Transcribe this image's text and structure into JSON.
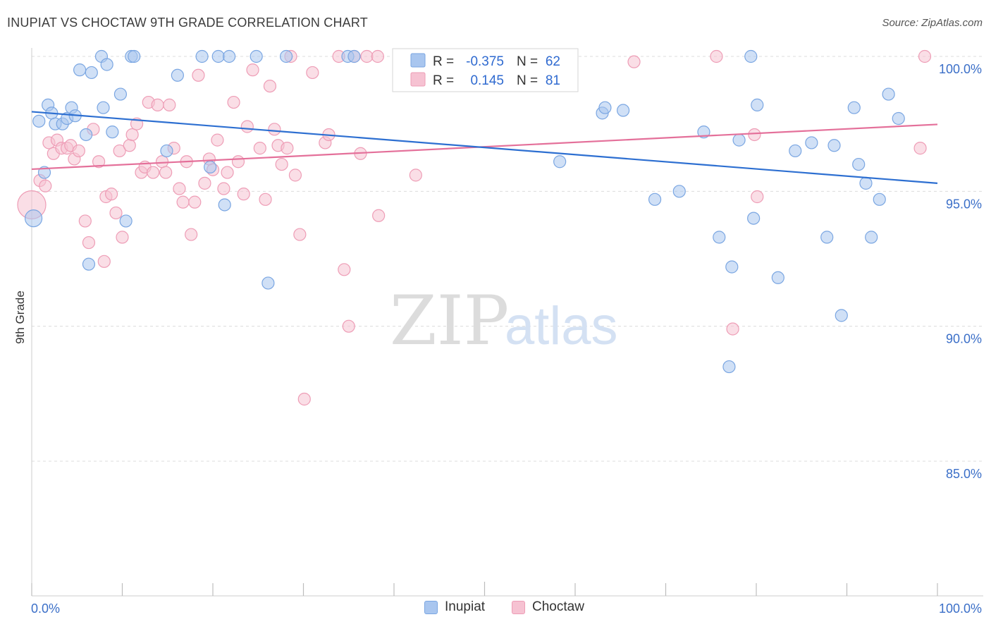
{
  "header": {
    "title": "INUPIAT VS CHOCTAW 9TH GRADE CORRELATION CHART",
    "source": "Source: ZipAtlas.com"
  },
  "watermark": {
    "part1": "ZIP",
    "part2": "atlas"
  },
  "colors": {
    "inupiat_fill": "#a9c6ef",
    "inupiat_stroke": "#7aa6e2",
    "inupiat_line": "#2d6fd1",
    "choctaw_fill": "#f6c2d2",
    "choctaw_stroke": "#ee9db6",
    "choctaw_line": "#e4709a",
    "grid": "#dcdcdc",
    "tick_label": "#3b6fc8"
  },
  "legend": {
    "rows": [
      {
        "r_label": "R =",
        "r_value": "-0.375",
        "n_label": "N =",
        "n_value": "62"
      },
      {
        "r_label": "R =",
        "r_value": "0.145",
        "n_label": "N =",
        "n_value": "81"
      }
    ]
  },
  "bottom_legend": {
    "items": [
      {
        "label": "Inupiat"
      },
      {
        "label": "Choctaw"
      }
    ]
  },
  "chart_data": {
    "type": "scatter",
    "title": "INUPIAT VS CHOCTAW 9TH GRADE CORRELATION CHART",
    "xlabel": "",
    "ylabel": "9th Grade",
    "xlim": [
      0,
      100
    ],
    "ylim": [
      80.5,
      100.9
    ],
    "x_tick_labels": [
      "0.0%",
      "100.0%"
    ],
    "y_ticks": [
      85,
      90,
      95,
      100
    ],
    "y_tick_labels": [
      "85.0%",
      "90.0%",
      "95.0%",
      "100.0%"
    ],
    "grid": "horizontal dashed",
    "legend_position": "top-center",
    "series": [
      {
        "name": "Inupiat",
        "R": -0.375,
        "N": 62,
        "trend": {
          "x": [
            0,
            100
          ],
          "y": [
            97.95,
            95.3
          ]
        },
        "points": [
          [
            0.2,
            94.0
          ],
          [
            0.8,
            97.6
          ],
          [
            1.4,
            95.7
          ],
          [
            1.8,
            98.2
          ],
          [
            2.2,
            97.9
          ],
          [
            2.6,
            97.5
          ],
          [
            3.4,
            97.5
          ],
          [
            3.9,
            97.7
          ],
          [
            4.4,
            98.1
          ],
          [
            4.8,
            97.8
          ],
          [
            5.3,
            99.5
          ],
          [
            6.0,
            97.1
          ],
          [
            6.3,
            92.3
          ],
          [
            6.6,
            99.4
          ],
          [
            7.7,
            100.0
          ],
          [
            7.9,
            98.1
          ],
          [
            8.3,
            99.7
          ],
          [
            8.9,
            97.2
          ],
          [
            9.8,
            98.6
          ],
          [
            10.4,
            93.9
          ],
          [
            11.0,
            100.0
          ],
          [
            11.3,
            100.0
          ],
          [
            14.9,
            96.5
          ],
          [
            16.1,
            99.3
          ],
          [
            18.8,
            100.0
          ],
          [
            19.7,
            95.9
          ],
          [
            20.6,
            100.0
          ],
          [
            21.3,
            94.5
          ],
          [
            21.8,
            100.0
          ],
          [
            24.8,
            100.0
          ],
          [
            26.1,
            91.6
          ],
          [
            28.1,
            100.0
          ],
          [
            34.9,
            100.0
          ],
          [
            35.6,
            100.0
          ],
          [
            47.4,
            100.0
          ],
          [
            58.3,
            96.1
          ],
          [
            63.0,
            97.9
          ],
          [
            63.3,
            98.1
          ],
          [
            65.3,
            98.0
          ],
          [
            68.8,
            94.7
          ],
          [
            71.5,
            95.0
          ],
          [
            74.2,
            97.2
          ],
          [
            75.9,
            93.3
          ],
          [
            77.0,
            88.5
          ],
          [
            77.3,
            92.2
          ],
          [
            78.1,
            96.9
          ],
          [
            79.4,
            100.0
          ],
          [
            79.7,
            94.0
          ],
          [
            80.1,
            98.2
          ],
          [
            82.4,
            91.8
          ],
          [
            84.3,
            96.5
          ],
          [
            86.1,
            96.8
          ],
          [
            87.8,
            93.3
          ],
          [
            88.6,
            96.7
          ],
          [
            89.4,
            90.4
          ],
          [
            90.8,
            98.1
          ],
          [
            91.3,
            96.0
          ],
          [
            92.1,
            95.3
          ],
          [
            92.7,
            93.3
          ],
          [
            93.6,
            94.7
          ],
          [
            94.6,
            98.6
          ],
          [
            95.7,
            97.7
          ]
        ]
      },
      {
        "name": "Choctaw",
        "R": 0.145,
        "N": 81,
        "trend": {
          "x": [
            0,
            100
          ],
          "y": [
            95.82,
            97.48
          ]
        },
        "points": [
          [
            0.0,
            94.5
          ],
          [
            0.9,
            95.4
          ],
          [
            1.5,
            95.2
          ],
          [
            1.9,
            96.8
          ],
          [
            2.4,
            96.4
          ],
          [
            2.8,
            96.9
          ],
          [
            3.3,
            96.6
          ],
          [
            3.9,
            96.6
          ],
          [
            4.3,
            96.7
          ],
          [
            4.7,
            96.2
          ],
          [
            5.2,
            96.5
          ],
          [
            5.9,
            93.9
          ],
          [
            6.3,
            93.1
          ],
          [
            6.8,
            97.3
          ],
          [
            7.4,
            96.1
          ],
          [
            8.0,
            92.4
          ],
          [
            8.2,
            94.8
          ],
          [
            8.8,
            94.9
          ],
          [
            9.3,
            94.2
          ],
          [
            9.7,
            96.5
          ],
          [
            10.0,
            93.3
          ],
          [
            10.8,
            96.7
          ],
          [
            11.1,
            97.1
          ],
          [
            11.6,
            97.5
          ],
          [
            12.1,
            95.7
          ],
          [
            12.5,
            95.9
          ],
          [
            12.9,
            98.3
          ],
          [
            13.4,
            95.7
          ],
          [
            13.9,
            98.2
          ],
          [
            14.4,
            96.1
          ],
          [
            14.8,
            95.7
          ],
          [
            15.2,
            98.2
          ],
          [
            15.7,
            96.6
          ],
          [
            16.3,
            95.1
          ],
          [
            16.7,
            94.6
          ],
          [
            17.1,
            96.1
          ],
          [
            17.6,
            93.4
          ],
          [
            18.0,
            94.6
          ],
          [
            18.4,
            99.3
          ],
          [
            19.1,
            95.3
          ],
          [
            19.6,
            96.2
          ],
          [
            20.0,
            95.8
          ],
          [
            20.5,
            96.9
          ],
          [
            21.2,
            95.1
          ],
          [
            21.6,
            95.7
          ],
          [
            22.3,
            98.3
          ],
          [
            22.8,
            96.1
          ],
          [
            23.4,
            94.9
          ],
          [
            23.8,
            97.4
          ],
          [
            24.4,
            99.5
          ],
          [
            25.2,
            96.6
          ],
          [
            25.8,
            94.7
          ],
          [
            26.3,
            98.9
          ],
          [
            26.8,
            97.3
          ],
          [
            27.2,
            96.7
          ],
          [
            27.6,
            96.0
          ],
          [
            28.2,
            96.6
          ],
          [
            28.6,
            100.0
          ],
          [
            29.1,
            95.6
          ],
          [
            29.6,
            93.4
          ],
          [
            30.1,
            87.3
          ],
          [
            31.0,
            99.4
          ],
          [
            32.4,
            96.8
          ],
          [
            32.8,
            97.1
          ],
          [
            33.9,
            100.0
          ],
          [
            34.5,
            92.1
          ],
          [
            35.0,
            90.0
          ],
          [
            35.6,
            100.0
          ],
          [
            36.3,
            96.4
          ],
          [
            37.0,
            100.0
          ],
          [
            38.2,
            100.0
          ],
          [
            38.3,
            94.1
          ],
          [
            42.4,
            95.6
          ],
          [
            45.4,
            100.0
          ],
          [
            66.5,
            99.8
          ],
          [
            75.6,
            100.0
          ],
          [
            77.4,
            89.9
          ],
          [
            79.8,
            97.1
          ],
          [
            80.1,
            94.8
          ],
          [
            98.1,
            96.6
          ],
          [
            98.6,
            100.0
          ]
        ]
      }
    ]
  }
}
